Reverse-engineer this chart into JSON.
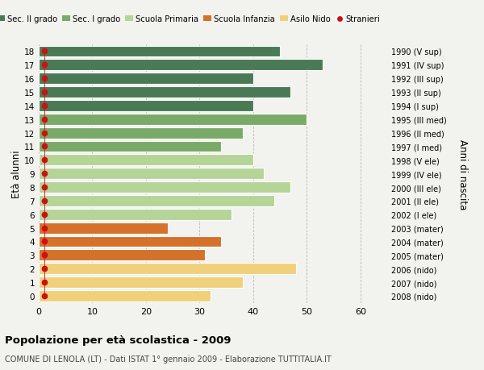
{
  "ages": [
    18,
    17,
    16,
    15,
    14,
    13,
    12,
    11,
    10,
    9,
    8,
    7,
    6,
    5,
    4,
    3,
    2,
    1,
    0
  ],
  "values": [
    45,
    53,
    40,
    47,
    40,
    50,
    38,
    34,
    40,
    42,
    47,
    44,
    36,
    24,
    34,
    31,
    48,
    38,
    32
  ],
  "stranieri_x": [
    1,
    1,
    1,
    1,
    1,
    1,
    1,
    1,
    1,
    1,
    1,
    1,
    1,
    1,
    1,
    1,
    1,
    1,
    1
  ],
  "right_labels": [
    "1990 (V sup)",
    "1991 (IV sup)",
    "1992 (III sup)",
    "1993 (II sup)",
    "1994 (I sup)",
    "1995 (III med)",
    "1996 (II med)",
    "1997 (I med)",
    "1998 (V ele)",
    "1999 (IV ele)",
    "2000 (III ele)",
    "2001 (II ele)",
    "2002 (I ele)",
    "2003 (mater)",
    "2004 (mater)",
    "2005 (mater)",
    "2006 (nido)",
    "2007 (nido)",
    "2008 (nido)"
  ],
  "bar_colors": [
    "#4a7a55",
    "#4a7a55",
    "#4a7a55",
    "#4a7a55",
    "#4a7a55",
    "#7aaa68",
    "#7aaa68",
    "#7aaa68",
    "#b5d498",
    "#b5d498",
    "#b5d498",
    "#b5d498",
    "#b5d498",
    "#d4712a",
    "#d4712a",
    "#d4712a",
    "#f0d07a",
    "#f0d07a",
    "#f0d07a"
  ],
  "legend_labels": [
    "Sec. II grado",
    "Sec. I grado",
    "Scuola Primaria",
    "Scuola Infanzia",
    "Asilo Nido",
    "Stranieri"
  ],
  "legend_colors": [
    "#4a7a55",
    "#7aaa68",
    "#b5d498",
    "#d4712a",
    "#f0d07a",
    "#cc1111"
  ],
  "ylabel": "Età alunni",
  "right_ylabel": "Anni di nascita",
  "title": "Popolazione per età scolastica - 2009",
  "subtitle": "COMUNE DI LENOLA (LT) - Dati ISTAT 1° gennaio 2009 - Elaborazione TUTTITALIA.IT",
  "xlim": [
    0,
    65
  ],
  "xticks": [
    0,
    10,
    20,
    30,
    40,
    50,
    60
  ],
  "background_color": "#f2f2ee",
  "stranieri_color": "#cc1111",
  "stranieri_marker_size": 4.5
}
